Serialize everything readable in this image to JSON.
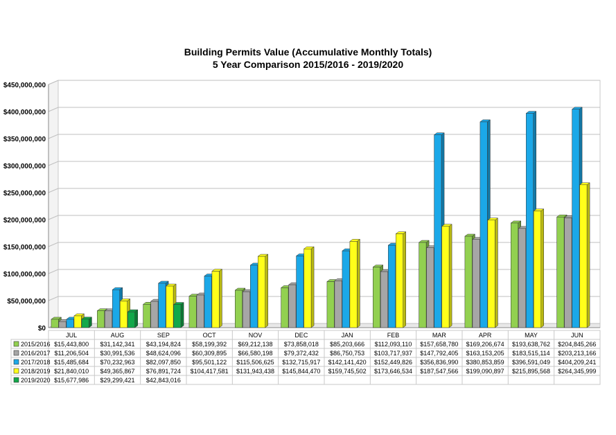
{
  "chart_data": {
    "type": "bar",
    "title": "Building Permits Value (Accumulative Monthly Totals)",
    "subtitle": "5 Year Comparison 2015/2016 - 2019/2020",
    "categories": [
      "JUL",
      "AUG",
      "SEP",
      "OCT",
      "NOV",
      "DEC",
      "JAN",
      "FEB",
      "MAR",
      "APR",
      "MAY",
      "JUN"
    ],
    "ylim": [
      0,
      450000000
    ],
    "y_ticks": [
      "$0",
      "$50,000,000",
      "$100,000,000",
      "$150,000,000",
      "$200,000,000",
      "$250,000,000",
      "$300,000,000",
      "$350,000,000",
      "$400,000,000",
      "$450,000,000"
    ],
    "grid": true,
    "legend": "data-table-below",
    "series": [
      {
        "name": "2015/2016",
        "color": "#92d050",
        "values": [
          15443800,
          31142341,
          43194824,
          58199392,
          69212138,
          73858018,
          85203666,
          112093110,
          157658780,
          169206674,
          193638762,
          204845266
        ],
        "labels": [
          "$15,443,800",
          "$31,142,341",
          "$43,194,824",
          "$58,199,392",
          "$69,212,138",
          "$73,858,018",
          "$85,203,666",
          "$112,093,110",
          "$157,658,780",
          "$169,206,674",
          "$193,638,762",
          "$204,845,266"
        ]
      },
      {
        "name": "2016/2017",
        "color": "#a6a6a6",
        "values": [
          11206504,
          30991536,
          48624096,
          60309895,
          66580198,
          79372432,
          86750753,
          103717937,
          147792405,
          163153205,
          183515114,
          203213166
        ],
        "labels": [
          "$11,206,504",
          "$30,991,536",
          "$48,624,096",
          "$60,309,895",
          "$66,580,198",
          "$79,372,432",
          "$86,750,753",
          "$103,717,937",
          "$147,792,405",
          "$163,153,205",
          "$183,515,114",
          "$203,213,166"
        ]
      },
      {
        "name": "2017/2018",
        "color": "#1ba8e8",
        "values": [
          15485684,
          70232963,
          82097850,
          95501122,
          115506625,
          132715917,
          142141420,
          152449826,
          356836990,
          380853859,
          396591049,
          404209241
        ],
        "labels": [
          "$15,485,684",
          "$70,232,963",
          "$82,097,850",
          "$95,501,122",
          "$115,506,625",
          "$132,715,917",
          "$142,141,420",
          "$152,449,826",
          "$356,836,990",
          "$380,853,859",
          "$396,591,049",
          "$404,209,241"
        ]
      },
      {
        "name": "2018/2019",
        "color": "#ffff1a",
        "values": [
          21840010,
          49365867,
          76891724,
          104417581,
          131943438,
          145844470,
          159745502,
          173646534,
          187547566,
          199090897,
          215895568,
          264345999
        ],
        "labels": [
          "$21,840,010",
          "$49,365,867",
          "$76,891,724",
          "$104,417,581",
          "$131,943,438",
          "$145,844,470",
          "$159,745,502",
          "$173,646,534",
          "$187,547,566",
          "$199,090,897",
          "$215,895,568",
          "$264,345,999"
        ]
      },
      {
        "name": "2019/2020",
        "color": "#12a84a",
        "values": [
          15677986,
          29299421,
          42843016,
          null,
          null,
          null,
          null,
          null,
          null,
          null,
          null,
          null
        ],
        "labels": [
          "$15,677,986",
          "$29,299,421",
          "$42,843,016",
          "",
          "",
          "",
          "",
          "",
          "",
          "",
          "",
          ""
        ]
      }
    ]
  }
}
